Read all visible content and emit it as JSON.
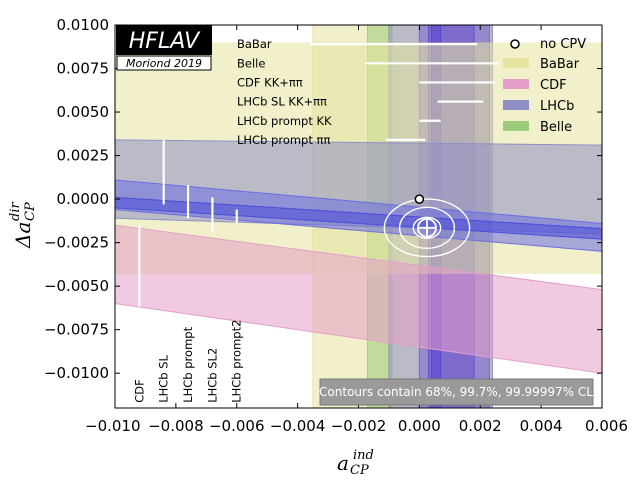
{
  "chart_data": {
    "type": "scatter",
    "xlabel": {
      "main": "a",
      "sup": "ind",
      "sub": "CP"
    },
    "ylabel": {
      "main": "Δa",
      "sup": "dir",
      "sub": "CP"
    },
    "xlim": [
      -0.01,
      0.006
    ],
    "ylim": [
      -0.012,
      0.01
    ],
    "x_ticks": [
      "−0.010",
      "−0.008",
      "−0.006",
      "−0.004",
      "−0.002",
      "0.000",
      "0.002",
      "0.004",
      "0.006"
    ],
    "x_tick_values": [
      -0.01,
      -0.008,
      -0.006,
      -0.004,
      -0.002,
      0.0,
      0.002,
      0.004,
      0.006
    ],
    "y_ticks": [
      "0.0100",
      "0.0075",
      "0.0050",
      "0.0025",
      "0.0000",
      "−0.0025",
      "−0.0050",
      "−0.0075",
      "−0.0100"
    ],
    "y_tick_values": [
      0.01,
      0.0075,
      0.005,
      0.0025,
      0.0,
      -0.0025,
      -0.005,
      -0.0075,
      -0.01
    ],
    "colors": {
      "babar": "#e5e4a0",
      "cdf": "#e49ec8",
      "lhcb": "#8e8fc6",
      "belle": "#9dcc7a",
      "lhcb_dark": "#6b6de0",
      "lhcb_narrow": "#7a62d0"
    },
    "bands": [
      {
        "name": "BaBar",
        "kind": "x",
        "range": [
          -0.0035,
          0.0024
        ],
        "color": "#e5e4a0"
      },
      {
        "name": "Belle",
        "kind": "x",
        "range": [
          -0.0017,
          -0.0009
        ],
        "color": "#9dcc7a"
      },
      {
        "name": "LHCb",
        "kind": "x",
        "range": [
          -0.001,
          0.0024
        ],
        "color": "#8e8fc6"
      },
      {
        "name": "LHCb",
        "kind": "x",
        "range": [
          0.0,
          0.0023
        ],
        "color": "#7a62d0"
      },
      {
        "name": "LHCb",
        "kind": "x",
        "range": [
          0.0003,
          0.0018
        ],
        "color": "#6a52cc"
      },
      {
        "name": "LHCb",
        "kind": "x",
        "range": [
          0.0004,
          0.0007
        ],
        "color": "#5a46d0"
      },
      {
        "name": "BaBar",
        "kind": "y",
        "range": [
          -0.0043,
          0.009
        ],
        "color": "#e5e4a0"
      },
      {
        "name": "CDF",
        "kind": "diag",
        "y_at_left": [
          -0.006,
          -0.0015
        ],
        "y_at_right": [
          -0.01,
          -0.0052
        ],
        "color": "#e49ec8"
      },
      {
        "name": "LHCb",
        "kind": "diag",
        "y_at_left": [
          -0.0011,
          0.0034
        ],
        "y_at_right": [
          -0.002,
          0.0031
        ],
        "color": "#8e8fc6"
      },
      {
        "name": "LHCb",
        "kind": "diag",
        "y_at_left": [
          -0.0006,
          0.0011
        ],
        "y_at_right": [
          -0.003,
          -0.0014
        ],
        "color": "#6b6de0"
      },
      {
        "name": "LHCb",
        "kind": "diag",
        "y_at_left": [
          -0.0005,
          0.0001
        ],
        "y_at_right": [
          -0.0023,
          -0.0017
        ],
        "color": "#4b4dd8"
      }
    ],
    "error_bars_x": [
      {
        "label": "BaBar",
        "y": 0.0089,
        "x": [
          -0.0036,
          0.0019
        ]
      },
      {
        "label": "Belle",
        "y": 0.0078,
        "x": [
          -0.0018,
          0.0026
        ]
      },
      {
        "label": "CDF KK+ππ",
        "y": 0.0067,
        "x": [
          0.0,
          0.0025
        ]
      },
      {
        "label": "LHCb SL KK+ππ",
        "y": 0.0056,
        "x": [
          0.0006,
          0.0021
        ]
      },
      {
        "label": "LHCb prompt KK",
        "y": 0.0045,
        "x": [
          0.0,
          0.0007
        ]
      },
      {
        "label": "LHCb prompt ππ",
        "y": 0.0034,
        "x": [
          -0.0011,
          0.0002
        ]
      }
    ],
    "error_bars_y": [
      {
        "label": "CDF",
        "x": -0.0092,
        "y": [
          -0.0062,
          -0.0015
        ]
      },
      {
        "label": "LHCb SL",
        "x": -0.0084,
        "y": [
          -0.0003,
          0.0034
        ]
      },
      {
        "label": "LHCb prompt",
        "x": -0.0076,
        "y": [
          -0.0011,
          0.0008
        ]
      },
      {
        "label": "LHCb SL2",
        "x": -0.0068,
        "y": [
          -0.0019,
          0.0001
        ]
      },
      {
        "label": "LHCb prompt2",
        "x": -0.006,
        "y": [
          -0.0014,
          -0.0006
        ]
      }
    ],
    "left_labels": [
      {
        "text": "BaBar",
        "y": 0.0089
      },
      {
        "text": "Belle",
        "y": 0.0078
      },
      {
        "text": "CDF KK+ππ",
        "y": 0.0067
      },
      {
        "text": "LHCb SL KK+ππ",
        "y": 0.0056
      },
      {
        "text": "LHCb prompt KK",
        "y": 0.0045
      },
      {
        "text": "LHCb prompt ππ",
        "y": 0.0034
      }
    ],
    "vertical_labels": [
      {
        "text": "CDF",
        "x": -0.0092
      },
      {
        "text": "LHCb SL",
        "x": -0.0084
      },
      {
        "text": "LHCb prompt",
        "x": -0.0076
      },
      {
        "text": "LHCb SL2",
        "x": -0.0068
      },
      {
        "text": "LHCb prompt2",
        "x": -0.006
      }
    ],
    "no_cpv_point": {
      "x": 0.0,
      "y": 0.0
    },
    "best_fit": {
      "x": 0.00025,
      "y": -0.00165
    },
    "contours": [
      {
        "cl": "68%",
        "rx": 0.00045,
        "ry": 0.0006
      },
      {
        "cl": "99.7%",
        "rx": 0.0009,
        "ry": 0.00118
      },
      {
        "cl": "99.99997%",
        "rx": 0.0014,
        "ry": 0.00165
      }
    ],
    "legend": {
      "position": "top-right",
      "entries": [
        {
          "label": "no CPV",
          "marker": "circle"
        },
        {
          "label": "BaBar",
          "color": "#e5e4a0"
        },
        {
          "label": "CDF",
          "color": "#e49ec8"
        },
        {
          "label": "LHCb",
          "color": "#8e8fc6"
        },
        {
          "label": "Belle",
          "color": "#9dcc7a"
        }
      ]
    },
    "logo": {
      "title": "HFLAV",
      "subtitle": "Moriond 2019"
    },
    "contour_note": "Contours contain 68%, 99.7%, 99.99997% CL"
  }
}
